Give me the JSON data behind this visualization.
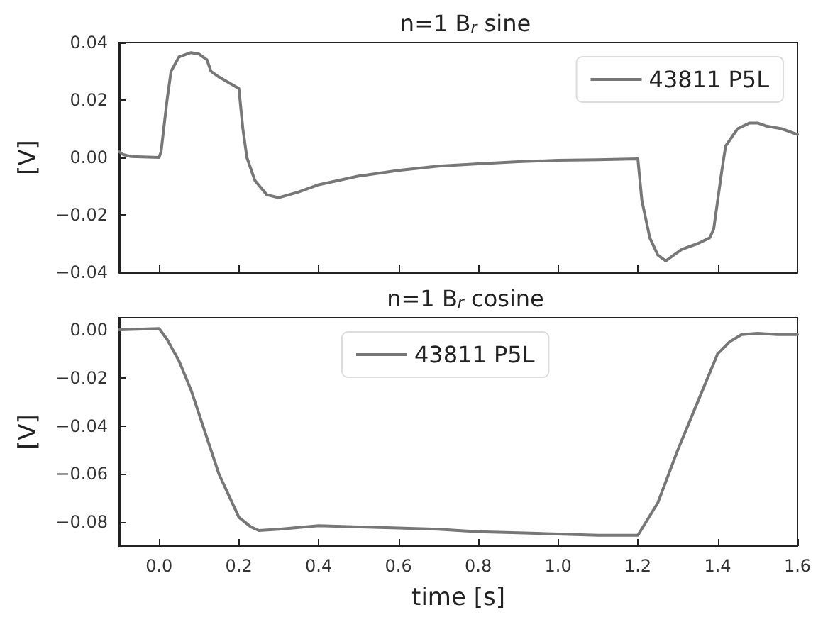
{
  "chart_data": [
    {
      "type": "line",
      "title": "n=1 B$_{r}$ sine",
      "ylabel": "[V]",
      "xlim": [
        -0.1,
        1.6
      ],
      "ylim": [
        -0.04,
        0.04
      ],
      "xticks": [
        {
          "value": 0,
          "label": null
        },
        {
          "value": 0.2,
          "label": null
        },
        {
          "value": 0.4,
          "label": null
        },
        {
          "value": 0.6,
          "label": null
        },
        {
          "value": 0.8,
          "label": null
        },
        {
          "value": 1.0,
          "label": null
        },
        {
          "value": 1.2,
          "label": null
        },
        {
          "value": 1.4,
          "label": null
        }
      ],
      "yticks": [
        {
          "value": -0.04,
          "label": "−0.04"
        },
        {
          "value": -0.02,
          "label": "−0.02"
        },
        {
          "value": 0,
          "label": "0.00"
        },
        {
          "value": 0.02,
          "label": "0.02"
        },
        {
          "value": 0.04,
          "label": "0.04"
        }
      ],
      "tick_labels": "y",
      "grid": false,
      "legend": "top right",
      "marker": "none",
      "line_style": "solid",
      "series": [
        {
          "name": "43811 P5L",
          "color": "#777777",
          "x": [
            -0.1,
            -0.09,
            -0.07,
            0.0,
            0.005,
            0.02,
            0.03,
            0.05,
            0.08,
            0.1,
            0.12,
            0.13,
            0.15,
            0.2,
            0.21,
            0.22,
            0.24,
            0.27,
            0.3,
            0.35,
            0.4,
            0.5,
            0.6,
            0.7,
            0.8,
            0.9,
            1.0,
            1.1,
            1.2,
            1.21,
            1.23,
            1.25,
            1.27,
            1.29,
            1.31,
            1.35,
            1.38,
            1.39,
            1.4,
            1.41,
            1.42,
            1.45,
            1.48,
            1.5,
            1.52,
            1.56,
            1.6
          ],
          "values": [
            0.002,
            0.001,
            0.0003,
            0.0,
            0.002,
            0.02,
            0.03,
            0.035,
            0.0365,
            0.036,
            0.034,
            0.03,
            0.028,
            0.024,
            0.01,
            0.0,
            -0.008,
            -0.013,
            -0.014,
            -0.012,
            -0.0095,
            -0.0065,
            -0.0045,
            -0.003,
            -0.0022,
            -0.0015,
            -0.001,
            -0.0008,
            -0.0005,
            -0.015,
            -0.028,
            -0.034,
            -0.036,
            -0.034,
            -0.032,
            -0.03,
            -0.028,
            -0.025,
            -0.015,
            -0.005,
            0.004,
            0.01,
            0.012,
            0.012,
            0.011,
            0.01,
            0.008
          ]
        }
      ]
    },
    {
      "type": "line",
      "title": "n=1 B$_{r}$ cosine",
      "xlabel": "time [s]",
      "ylabel": "[V]",
      "xlim": [
        -0.1,
        1.6
      ],
      "ylim": [
        -0.09,
        0.005
      ],
      "xticks": [
        {
          "value": 0,
          "label": "0.0"
        },
        {
          "value": 0.2,
          "label": "0.2"
        },
        {
          "value": 0.4,
          "label": "0.4"
        },
        {
          "value": 0.6,
          "label": "0.6"
        },
        {
          "value": 0.8,
          "label": "0.8"
        },
        {
          "value": 1.0,
          "label": "1.0"
        },
        {
          "value": 1.2,
          "label": "1.2"
        },
        {
          "value": 1.4,
          "label": "1.4"
        },
        {
          "value": 1.6,
          "label": "1.6"
        }
      ],
      "yticks": [
        {
          "value": -0.08,
          "label": "−0.08"
        },
        {
          "value": -0.06,
          "label": "−0.06"
        },
        {
          "value": -0.04,
          "label": "−0.04"
        },
        {
          "value": -0.02,
          "label": "−0.02"
        },
        {
          "value": 0,
          "label": "0.00"
        }
      ],
      "grid": false,
      "legend": "top",
      "marker": "none",
      "line_style": "solid",
      "series": [
        {
          "name": "43811 P5L",
          "color": "#777777",
          "x": [
            -0.1,
            0.0,
            0.02,
            0.05,
            0.08,
            0.11,
            0.15,
            0.2,
            0.23,
            0.25,
            0.3,
            0.4,
            0.5,
            0.6,
            0.7,
            0.8,
            0.9,
            1.0,
            1.1,
            1.2,
            1.25,
            1.3,
            1.35,
            1.4,
            1.43,
            1.46,
            1.5,
            1.55,
            1.6
          ],
          "values": [
            0.0,
            0.0005,
            -0.004,
            -0.013,
            -0.025,
            -0.04,
            -0.06,
            -0.078,
            -0.082,
            -0.0835,
            -0.083,
            -0.0815,
            -0.082,
            -0.0825,
            -0.083,
            -0.084,
            -0.0845,
            -0.085,
            -0.0855,
            -0.0855,
            -0.072,
            -0.05,
            -0.03,
            -0.01,
            -0.005,
            -0.002,
            -0.0015,
            -0.002,
            -0.002
          ]
        }
      ]
    }
  ]
}
